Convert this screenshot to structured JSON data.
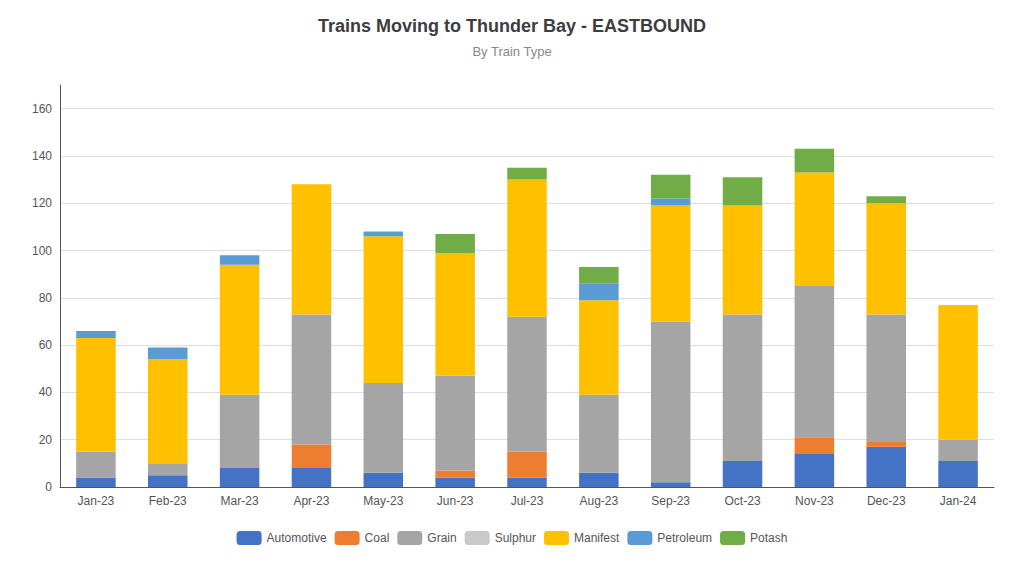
{
  "chart_data": {
    "type": "bar",
    "title": "Trains Moving to Thunder Bay - EASTBOUND",
    "subtitle": "By Train Type",
    "categories": [
      "Jan-23",
      "Feb-23",
      "Mar-23",
      "Apr-23",
      "May-23",
      "Jun-23",
      "Jul-23",
      "Aug-23",
      "Sep-23",
      "Oct-23",
      "Nov-23",
      "Dec-23",
      "Jan-24"
    ],
    "stacked": true,
    "series": [
      {
        "name": "Automotive",
        "color": "#4472C4",
        "values": [
          4,
          5,
          8,
          8,
          6,
          4,
          4,
          6,
          2,
          11,
          14,
          17,
          11
        ]
      },
      {
        "name": "Coal",
        "color": "#ED7D31",
        "values": [
          0,
          0,
          0,
          10,
          0,
          3,
          11,
          0,
          0,
          0,
          7,
          2,
          0
        ]
      },
      {
        "name": "Grain",
        "color": "#A5A5A5",
        "values": [
          11,
          5,
          31,
          55,
          38,
          40,
          57,
          33,
          68,
          62,
          64,
          54,
          9
        ]
      },
      {
        "name": "Sulphur",
        "color": "#C9C9C9",
        "values": [
          0,
          0,
          0,
          0,
          0,
          0,
          0,
          0,
          0,
          0,
          0,
          0,
          0
        ]
      },
      {
        "name": "Manifest",
        "color": "#FFC000",
        "values": [
          48,
          44,
          55,
          55,
          62,
          52,
          58,
          40,
          49,
          46,
          48,
          47,
          57
        ]
      },
      {
        "name": "Petroleum",
        "color": "#5B9BD5",
        "values": [
          3,
          5,
          4,
          0,
          2,
          0,
          0,
          7,
          3,
          0,
          0,
          0,
          0
        ]
      },
      {
        "name": "Potash",
        "color": "#70AD47",
        "values": [
          0,
          0,
          0,
          0,
          0,
          8,
          5,
          7,
          10,
          12,
          10,
          3,
          0
        ]
      }
    ],
    "ylim": [
      0,
      170
    ],
    "yticks": [
      0,
      20,
      40,
      60,
      80,
      100,
      120,
      140,
      160
    ],
    "grid": true,
    "legend": "bottom"
  }
}
